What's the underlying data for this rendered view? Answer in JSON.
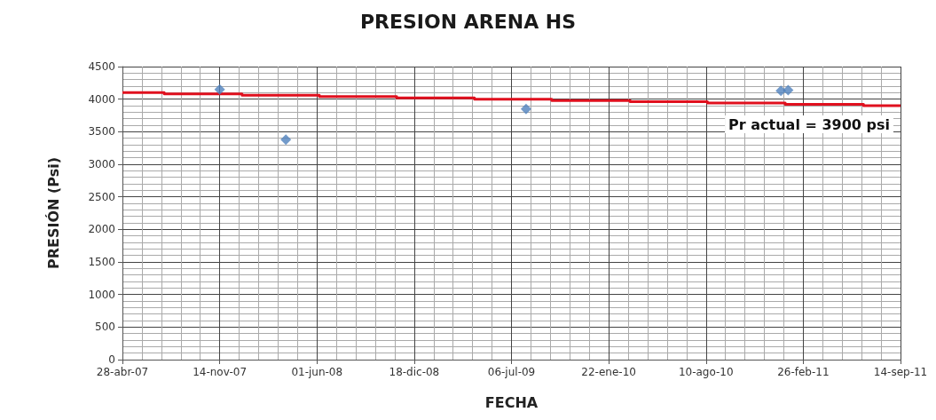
{
  "chart_data": {
    "type": "scatter",
    "title": "PRESION ARENA HS",
    "xlabel": "FECHA",
    "ylabel": "PRESIÓN (Psi)",
    "annotations": [
      "Pr actual = 3900 psi"
    ],
    "series": [
      {
        "type": "step",
        "color": "#e0101e",
        "marker": "none",
        "line_style": "solid",
        "x": [
          "2007-04-28",
          "2007-07-23",
          "2007-12-30",
          "2008-06-06",
          "2008-11-12",
          "2009-04-21",
          "2009-09-27",
          "2010-03-07",
          "2010-08-13",
          "2011-01-20",
          "2011-06-30",
          "2011-09-14"
        ],
        "values": [
          4100,
          4080,
          4060,
          4040,
          4020,
          4000,
          3980,
          3960,
          3940,
          3920,
          3900,
          3900
        ]
      },
      {
        "type": "scatter",
        "color": "#4f81bd",
        "marker": "diamond",
        "x": [
          "2007-11-14",
          "2008-03-29",
          "2009-08-05",
          "2011-01-11",
          "2011-01-26"
        ],
        "values": [
          4150,
          3380,
          3850,
          4130,
          4140
        ]
      }
    ],
    "xlim": [
      "2007-04-28",
      "2011-09-14"
    ],
    "xticks": [
      {
        "value": "2007-04-28",
        "label": "28-abr-07"
      },
      {
        "value": "2007-11-14",
        "label": "14-nov-07"
      },
      {
        "value": "2008-06-01",
        "label": "01-jun-08"
      },
      {
        "value": "2008-12-18",
        "label": "18-dic-08"
      },
      {
        "value": "2009-07-06",
        "label": "06-jul-09"
      },
      {
        "value": "2010-01-22",
        "label": "22-ene-10"
      },
      {
        "value": "2010-08-10",
        "label": "10-ago-10"
      },
      {
        "value": "2011-02-26",
        "label": "26-feb-11"
      },
      {
        "value": "2011-09-14",
        "label": "14-sep-11"
      }
    ],
    "ylim": [
      0,
      4500
    ],
    "yticks": [
      0,
      500,
      1000,
      1500,
      2000,
      2500,
      3000,
      3500,
      4000,
      4500
    ],
    "grid": true
  }
}
